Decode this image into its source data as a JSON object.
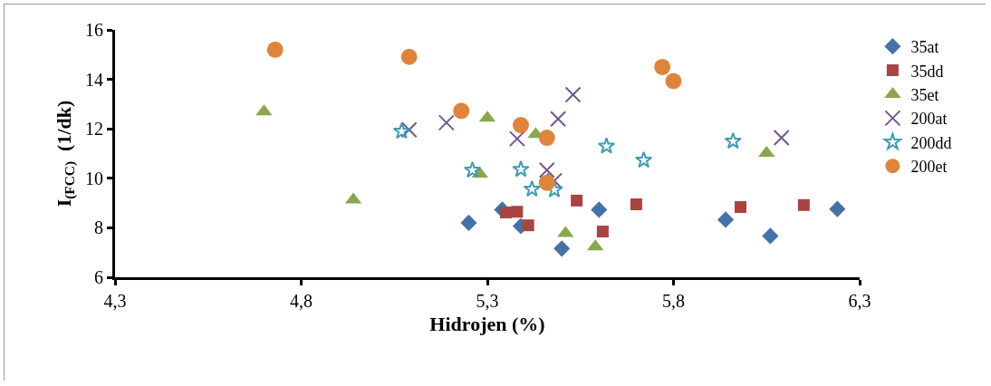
{
  "chart_data": {
    "type": "scatter",
    "xlabel": "Hidrojen (%)",
    "ylabel": "I$_{(FCC)}$  (1/dk)",
    "xlim": [
      4.3,
      6.3
    ],
    "xticks": [
      {
        "value": 4.3,
        "label": "4,3"
      },
      {
        "value": 4.8,
        "label": "4,8"
      },
      {
        "value": 5.3,
        "label": "5,3"
      },
      {
        "value": 5.8,
        "label": "5,8"
      },
      {
        "value": 6.3,
        "label": "6,3"
      }
    ],
    "ylim": [
      6,
      16
    ],
    "yticks": [
      6,
      8,
      10,
      12,
      14,
      16
    ],
    "grid": false,
    "legend": "right",
    "series": [
      {
        "name": "35at",
        "color": "#4472a8",
        "marker": "diamond",
        "x": [
          5.25,
          5.34,
          5.39,
          5.5,
          5.6,
          5.94,
          6.06,
          6.24
        ],
        "values": [
          8.2,
          8.73,
          8.07,
          7.16,
          8.73,
          8.33,
          7.67,
          8.76
        ]
      },
      {
        "name": "35dd",
        "color": "#a94442",
        "marker": "square",
        "x": [
          5.35,
          5.38,
          5.41,
          5.54,
          5.61,
          5.7,
          5.98,
          6.15
        ],
        "values": [
          8.62,
          8.65,
          8.1,
          9.1,
          7.85,
          8.95,
          8.84,
          8.92
        ]
      },
      {
        "name": "35et",
        "color": "#8aa84b",
        "marker": "triangle",
        "x": [
          4.7,
          4.94,
          5.3,
          5.28,
          5.43,
          5.51,
          5.59,
          6.05
        ],
        "values": [
          12.69,
          9.13,
          12.44,
          10.18,
          11.78,
          7.78,
          7.24,
          11.02
        ]
      },
      {
        "name": "200at",
        "color": "#6f5791",
        "marker": "cross",
        "x": [
          5.09,
          5.19,
          5.38,
          5.49,
          5.53,
          5.46,
          5.48,
          6.09
        ],
        "values": [
          11.96,
          12.25,
          11.6,
          12.4,
          13.38,
          10.33,
          9.9,
          11.64
        ]
      },
      {
        "name": "200dd",
        "color": "#3e9db5",
        "marker": "star",
        "x": [
          5.07,
          5.26,
          5.39,
          5.42,
          5.48,
          5.62,
          5.72,
          5.96
        ],
        "values": [
          11.9,
          10.33,
          10.36,
          9.56,
          9.53,
          11.3,
          10.73,
          11.5
        ]
      },
      {
        "name": "200et",
        "color": "#e0843c",
        "marker": "circle",
        "x": [
          4.73,
          5.09,
          5.23,
          5.39,
          5.46,
          5.46,
          5.77,
          5.8
        ],
        "values": [
          15.2,
          14.91,
          12.73,
          12.15,
          11.64,
          9.82,
          14.5,
          13.93
        ]
      }
    ]
  }
}
